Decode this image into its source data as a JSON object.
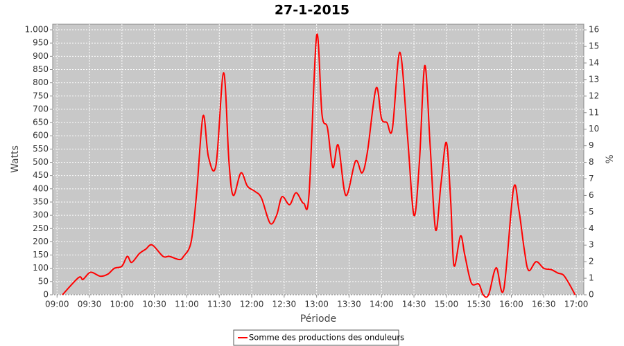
{
  "chart_data": {
    "type": "line",
    "title": "27-1-2015",
    "xlabel": "Période",
    "ylabel": "Watts",
    "y2label": "%",
    "x": [
      "09:05",
      "09:20",
      "09:24",
      "09:31",
      "09:40",
      "09:47",
      "09:53",
      "10:00",
      "10:05",
      "10:09",
      "10:16",
      "10:22",
      "10:28",
      "10:38",
      "10:44",
      "10:53",
      "10:57",
      "11:04",
      "11:09",
      "11:15",
      "11:20",
      "11:27",
      "11:34",
      "11:39",
      "11:43",
      "11:50",
      "11:56",
      "12:03",
      "12:09",
      "12:17",
      "12:23",
      "12:28",
      "12:35",
      "12:41",
      "12:48",
      "12:53",
      "13:00",
      "13:05",
      "13:10",
      "13:15",
      "13:20",
      "13:27",
      "13:36",
      "13:42",
      "13:47",
      "13:55",
      "14:00",
      "14:05",
      "14:10",
      "14:17",
      "14:24",
      "14:30",
      "14:35",
      "14:40",
      "14:45",
      "14:50",
      "14:55",
      "15:00",
      "15:04",
      "15:07",
      "15:13",
      "15:17",
      "15:23",
      "15:30",
      "15:34",
      "15:39",
      "15:46",
      "15:53",
      "16:02",
      "16:07",
      "16:12",
      "16:16",
      "16:23",
      "16:30",
      "16:37",
      "16:43",
      "16:48",
      "16:53",
      "16:59"
    ],
    "series": [
      {
        "name": "Somme des productions des onduleurs",
        "color": "#ff0000",
        "values": [
          0,
          65,
          58,
          85,
          70,
          78,
          100,
          108,
          145,
          122,
          155,
          172,
          188,
          145,
          145,
          133,
          145,
          200,
          380,
          675,
          520,
          490,
          838,
          500,
          375,
          460,
          410,
          390,
          365,
          270,
          300,
          370,
          340,
          385,
          345,
          380,
          978,
          680,
          630,
          480,
          565,
          375,
          505,
          460,
          540,
          780,
          665,
          650,
          625,
          915,
          600,
          300,
          500,
          865,
          560,
          245,
          420,
          575,
          350,
          110,
          222,
          150,
          45,
          40,
          0,
          0,
          102,
          20,
          400,
          320,
          170,
          92,
          125,
          100,
          95,
          82,
          75,
          45,
          0
        ]
      }
    ],
    "xlim": [
      "08:56",
      "17:07"
    ],
    "xticks": [
      "09:00",
      "09:30",
      "10:00",
      "10:30",
      "11:00",
      "11:30",
      "12:00",
      "12:30",
      "13:00",
      "13:30",
      "14:00",
      "14:30",
      "15:00",
      "15:30",
      "16:00",
      "16:30",
      "17:00"
    ],
    "ylim": [
      0,
      1021
    ],
    "yticks": [
      0,
      50,
      100,
      150,
      200,
      250,
      300,
      350,
      400,
      450,
      500,
      550,
      600,
      650,
      700,
      750,
      800,
      850,
      900,
      950,
      {
        "value": 1000,
        "label": "1.000"
      }
    ],
    "y2lim": [
      0,
      16.34
    ],
    "y2ticks": [
      0,
      1,
      2,
      3,
      4,
      5,
      6,
      7,
      8,
      9,
      10,
      11,
      12,
      13,
      14,
      15,
      16
    ],
    "grid": true,
    "legend": "bottom",
    "plot_background": "#c8c8c8"
  }
}
